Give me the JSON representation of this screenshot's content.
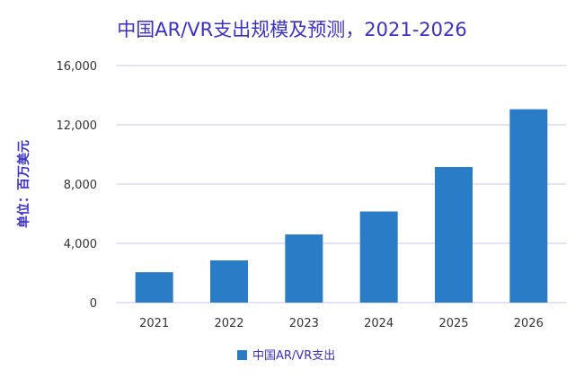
{
  "chart_data": {
    "type": "bar",
    "title": "中国AR/VR支出规模及预测，2021-2026",
    "ylabel": "单位：百万美元",
    "xlabel": "",
    "categories": [
      "2021",
      "2022",
      "2023",
      "2024",
      "2025",
      "2026"
    ],
    "series": [
      {
        "name": "中国AR/VR支出",
        "values": [
          2050,
          2850,
          4600,
          6150,
          9150,
          13050
        ]
      }
    ],
    "ylim": [
      0,
      16000
    ],
    "yticks": [
      0,
      4000,
      8000,
      12000,
      16000
    ],
    "ytick_labels": [
      "0",
      "4,000",
      "8,000",
      "12,000",
      "16,000"
    ],
    "grid": true,
    "legend_position": "bottom",
    "colors": {
      "bar": "#2a7cc7",
      "title": "#3a2fc8",
      "grid": "#c9c6f2"
    }
  }
}
